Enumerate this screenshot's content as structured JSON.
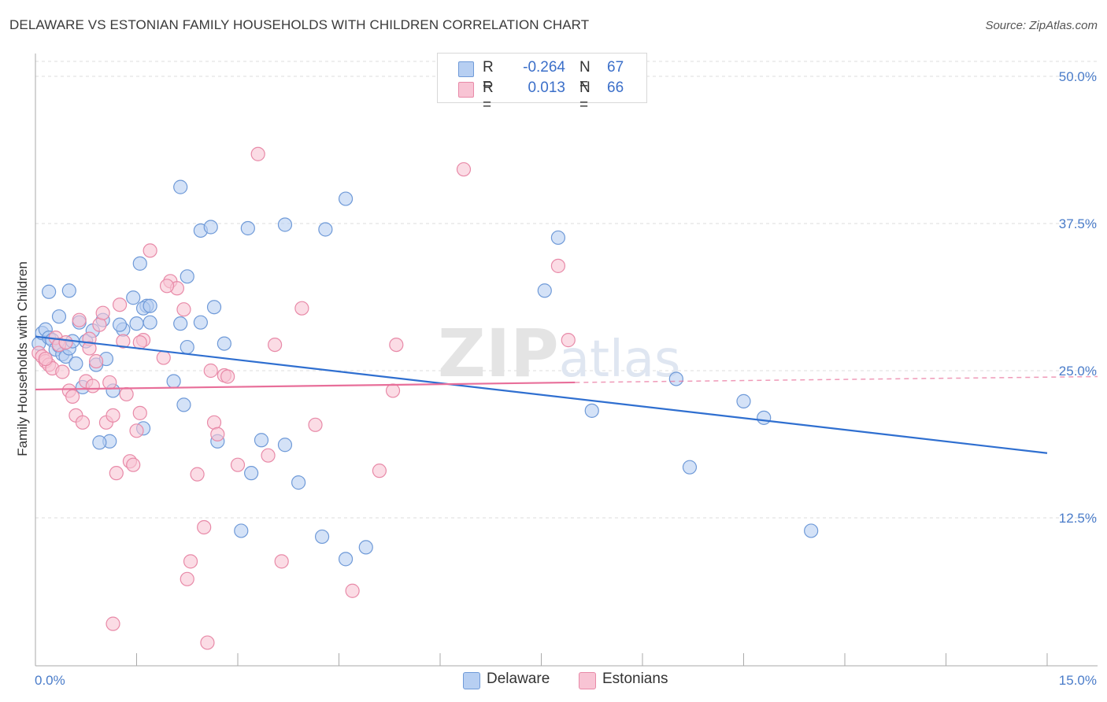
{
  "title": "DELAWARE VS ESTONIAN FAMILY HOUSEHOLDS WITH CHILDREN CORRELATION CHART",
  "source": "Source: ZipAtlas.com",
  "watermark": "ZIPatlas",
  "colors": {
    "delaware_fill": "#b7cff2",
    "delaware_stroke": "#6f9ad8",
    "delaware_line": "#2f6fd0",
    "estonian_fill": "#f8c4d4",
    "estonian_stroke": "#e88aa8",
    "estonian_line": "#e86f9a",
    "tick_text": "#4a7cc9",
    "grid": "#dddddd"
  },
  "legend": {
    "rows": [
      {
        "r_label": "R =",
        "r_value": "-0.264",
        "n_label": "N =",
        "n_value": "67",
        "series": "Delaware"
      },
      {
        "r_label": "R =",
        "r_value": "0.013",
        "n_label": "N =",
        "n_value": "66",
        "series": "Estonians"
      }
    ]
  },
  "bottom_legend": [
    "Delaware",
    "Estonians"
  ],
  "chart_data": {
    "type": "scatter",
    "title": "DELAWARE VS ESTONIAN FAMILY HOUSEHOLDS WITH CHILDREN CORRELATION CHART",
    "xlabel": "",
    "ylabel": "Family Households with Children",
    "xlim": [
      0,
      15
    ],
    "ylim": [
      0,
      50
    ],
    "x_tick_labels": [
      "0.0%",
      "15.0%"
    ],
    "y_ticks": [
      12.5,
      25.0,
      37.5,
      50.0
    ],
    "y_tick_labels": [
      "12.5%",
      "25.0%",
      "37.5%",
      "50.0%"
    ],
    "grid": "horizontal dashed",
    "legend_position": "top-center",
    "series": [
      {
        "name": "Delaware",
        "r": -0.264,
        "n": 67,
        "trend": {
          "x": [
            0.0,
            15.0
          ],
          "y": [
            27.9,
            18.0
          ]
        },
        "points": [
          [
            0.05,
            27.3
          ],
          [
            0.1,
            28.2
          ],
          [
            0.15,
            28.5
          ],
          [
            0.2,
            27.8
          ],
          [
            0.25,
            27.6
          ],
          [
            0.3,
            26.8
          ],
          [
            0.35,
            27.1
          ],
          [
            0.4,
            26.4
          ],
          [
            0.45,
            26.2
          ],
          [
            0.5,
            26.9
          ],
          [
            0.55,
            27.5
          ],
          [
            0.6,
            25.6
          ],
          [
            0.65,
            29.1
          ],
          [
            0.7,
            23.6
          ],
          [
            0.75,
            27.5
          ],
          [
            0.85,
            28.4
          ],
          [
            0.9,
            25.5
          ],
          [
            0.2,
            31.7
          ],
          [
            0.35,
            29.6
          ],
          [
            0.5,
            31.8
          ],
          [
            1.0,
            29.3
          ],
          [
            1.05,
            26.0
          ],
          [
            1.15,
            23.3
          ],
          [
            1.45,
            31.2
          ],
          [
            1.55,
            34.1
          ],
          [
            1.6,
            20.1
          ],
          [
            1.5,
            29.0
          ],
          [
            1.65,
            30.5
          ],
          [
            1.3,
            28.5
          ],
          [
            1.25,
            28.9
          ],
          [
            1.7,
            29.1
          ],
          [
            1.1,
            19.0
          ],
          [
            0.95,
            18.9
          ],
          [
            1.6,
            30.3
          ],
          [
            2.15,
            29.0
          ],
          [
            2.25,
            27.0
          ],
          [
            2.45,
            29.1
          ],
          [
            2.25,
            33.0
          ],
          [
            2.65,
            30.4
          ],
          [
            2.8,
            27.3
          ],
          [
            1.7,
            30.5
          ],
          [
            2.15,
            40.6
          ],
          [
            2.2,
            22.1
          ],
          [
            2.05,
            24.1
          ],
          [
            2.45,
            36.9
          ],
          [
            2.6,
            37.2
          ],
          [
            3.15,
            37.1
          ],
          [
            3.7,
            37.4
          ],
          [
            3.2,
            16.3
          ],
          [
            2.7,
            19.0
          ],
          [
            3.05,
            11.4
          ],
          [
            3.35,
            19.1
          ],
          [
            3.7,
            18.7
          ],
          [
            3.9,
            15.5
          ],
          [
            4.25,
            10.9
          ],
          [
            4.6,
            9.0
          ],
          [
            4.9,
            10.0
          ],
          [
            4.6,
            39.6
          ],
          [
            4.3,
            37.0
          ],
          [
            7.75,
            36.3
          ],
          [
            7.55,
            31.8
          ],
          [
            8.25,
            21.6
          ],
          [
            9.5,
            24.3
          ],
          [
            9.7,
            16.8
          ],
          [
            10.5,
            22.4
          ],
          [
            10.8,
            21.0
          ],
          [
            11.5,
            11.4
          ]
        ]
      },
      {
        "name": "Estonians",
        "r": 0.013,
        "n": 66,
        "trend": {
          "x": [
            0.0,
            8.0
          ],
          "y": [
            23.4,
            24.0
          ]
        },
        "trend_dashed": {
          "x": [
            8.0,
            15.0
          ],
          "y": [
            24.0,
            24.5
          ]
        },
        "points": [
          [
            0.05,
            26.5
          ],
          [
            0.1,
            26.2
          ],
          [
            0.15,
            25.8
          ],
          [
            0.2,
            25.5
          ],
          [
            0.25,
            25.2
          ],
          [
            0.3,
            27.8
          ],
          [
            0.35,
            27.2
          ],
          [
            0.4,
            24.9
          ],
          [
            0.45,
            27.4
          ],
          [
            0.5,
            23.3
          ],
          [
            0.55,
            22.8
          ],
          [
            0.6,
            21.2
          ],
          [
            0.65,
            29.3
          ],
          [
            0.7,
            20.6
          ],
          [
            0.75,
            24.1
          ],
          [
            0.8,
            27.7
          ],
          [
            0.85,
            23.7
          ],
          [
            0.9,
            25.8
          ],
          [
            0.95,
            28.9
          ],
          [
            1.0,
            29.9
          ],
          [
            1.05,
            20.6
          ],
          [
            1.1,
            24.0
          ],
          [
            1.15,
            21.2
          ],
          [
            1.2,
            16.3
          ],
          [
            1.25,
            30.6
          ],
          [
            1.3,
            27.5
          ],
          [
            1.35,
            23.0
          ],
          [
            1.4,
            17.3
          ],
          [
            1.45,
            17.0
          ],
          [
            1.5,
            19.9
          ],
          [
            1.55,
            21.4
          ],
          [
            1.6,
            27.6
          ],
          [
            1.7,
            35.2
          ],
          [
            1.9,
            26.1
          ],
          [
            2.0,
            32.6
          ],
          [
            2.1,
            32.0
          ],
          [
            2.2,
            30.2
          ],
          [
            2.25,
            7.3
          ],
          [
            2.3,
            8.8
          ],
          [
            2.4,
            16.2
          ],
          [
            2.5,
            11.7
          ],
          [
            2.6,
            25.0
          ],
          [
            2.65,
            20.6
          ],
          [
            2.7,
            19.6
          ],
          [
            2.8,
            24.6
          ],
          [
            2.85,
            24.5
          ],
          [
            3.0,
            17.0
          ],
          [
            3.3,
            43.4
          ],
          [
            3.45,
            17.8
          ],
          [
            3.55,
            27.2
          ],
          [
            3.65,
            8.8
          ],
          [
            3.95,
            30.3
          ],
          [
            4.15,
            20.4
          ],
          [
            4.7,
            6.3
          ],
          [
            5.1,
            16.5
          ],
          [
            5.3,
            23.3
          ],
          [
            5.35,
            27.2
          ],
          [
            6.35,
            42.1
          ],
          [
            7.75,
            33.9
          ],
          [
            7.9,
            27.6
          ],
          [
            1.15,
            3.5
          ],
          [
            2.55,
            1.9
          ],
          [
            1.95,
            32.2
          ],
          [
            0.8,
            26.9
          ],
          [
            1.55,
            27.4
          ],
          [
            0.15,
            26.0
          ]
        ]
      }
    ]
  }
}
